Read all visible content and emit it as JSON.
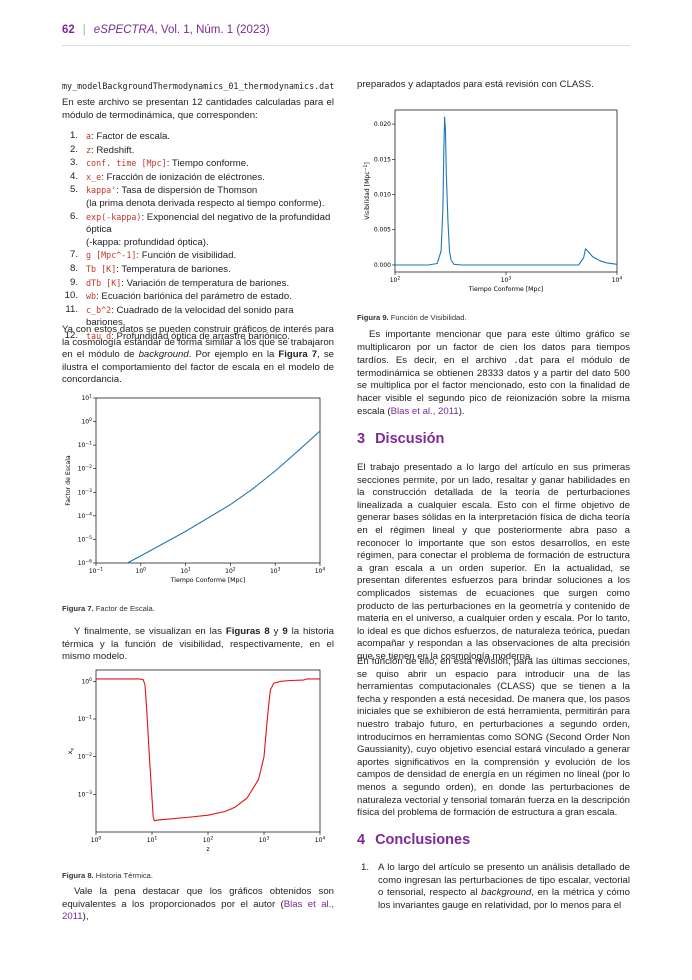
{
  "header": {
    "page": "62",
    "sep": "|",
    "journal": "eSPECTRA",
    "volume": ", Vol. 1, Núm. 1 (2023)"
  },
  "left": {
    "file": "my_modelBackgroundThermodynamics_01_thermodynamics.dat",
    "intro": "En este archivo se presentan 12 cantidades calculadas para el módulo de termodinámica, que corresponden:",
    "items": [
      {
        "n": "1.",
        "code": "a",
        "text": ": Factor de escala."
      },
      {
        "n": "2.",
        "code": "z",
        "text": ": Redshift."
      },
      {
        "n": "3.",
        "code": "conf. time [Mpc]",
        "text": ": Tiempo conforme."
      },
      {
        "n": "4.",
        "code": "x_e",
        "text": ": Fracción de ionización de eléctrones."
      },
      {
        "n": "5.",
        "code": "kappa'",
        "text": ": Tasa de dispersión de Thomson",
        "extra": "(la prima denota derivada respecto al tiempo conforme)."
      },
      {
        "n": "6.",
        "code": "exp(-kappa)",
        "text": ": Exponencial del negativo de la profundidad óptica",
        "extra": "(-kappa: profundidad óptica)."
      },
      {
        "n": "7.",
        "code": "g [Mpc^-1]",
        "text": ": Función de visibilidad."
      },
      {
        "n": "8.",
        "code": "Tb [K]",
        "text": ": Temperatura de bariones."
      },
      {
        "n": "9.",
        "code": "dTb [K]",
        "text": ": Variación de temperatura de bariones."
      },
      {
        "n": "10.",
        "code": "wb",
        "text": ": Ecuación bariónica del parámetro de estado."
      },
      {
        "n": "11.",
        "code": "c_b^2",
        "text": ": Cuadrado de la velocidad del sonido para bariones."
      },
      {
        "n": "12.",
        "code": "tau_d",
        "text": ": Profundidad óptica de arrastre bariónico."
      }
    ],
    "para1_a": "Ya con estos datos se pueden construir gráficos de interés para la cosmología estándar de forma similar a los que se trabajaron en el módulo de ",
    "para1_i": "background",
    "para1_b": ". Por ejemplo en la ",
    "para1_fig": "Figura 7",
    "para1_c": ", se ilustra el comportamiento del factor de escala en el modelo de concordancia.",
    "fig7_cap_b": "Figura 7.",
    "fig7_cap": " Factor de Escala.",
    "para2_a": "Y finalmente, se visualizan en las ",
    "para2_f8": "Figuras 8",
    "para2_y": " y ",
    "para2_f9": "9",
    "para2_b": " la historia térmica y la función de visibilidad, respectivamente, en el mismo modelo.",
    "fig8_cap_b": "Figura 8.",
    "fig8_cap": " Historia Térmica.",
    "para3_a": "Vale la pena destacar que los gráficos obtenidos son equivalentes a los proporcionados por el autor (",
    "para3_cite": "Blas et al., 2011",
    "para3_b": "),"
  },
  "right": {
    "top": "preparados y adaptados para está revisión con CLASS.",
    "fig9_cap_b": "Figura 9.",
    "fig9_cap": " Función de Visibilidad.",
    "para1_a": "Es importante mencionar que para este último gráfico se multiplicaron por un factor de cien los datos para tiempos tardíos. Es decir, en el archivo ",
    "para1_code": ".dat",
    "para1_b": " para el módulo de termodinámica se obtienen 28333 datos y a partir del dato 500 se multiplica por el factor mencionado, esto con la finalidad de hacer visible el segundo pico de reionización sobre la misma escala (",
    "para1_cite": "Blas et al., 2011",
    "para1_c": ").",
    "sec3_num": "3",
    "sec3_title": "Discusión",
    "disc1": "El trabajo presentado a lo largo del artículo en sus primeras secciones permite, por un lado, resaltar y ganar habilidades en la construcción detallada de la teoría de perturbaciones linealizada a cualquier escala. Esto con el firme objetivo de generar bases sólidas en la interpretación física de dicha teoría en el régimen lineal y que posteriormente abra paso a reconocer lo importante que son estos desarrollos, en este régimen, para conectar el problema de formación de estructura a gran escala a un orden superior. En la actualidad, se presentan diferentes esfuerzos para brindar soluciones a los complicados sistemas de ecuaciones que surgen como producto de las perturbaciones en la geometría y contenido de materia en el universo, a cualquier orden y escala. Por lo tanto, lo ideal es que dichos esfuerzos, de naturaleza teórica, puedan acompañar y respondan a las observaciones de alta precisión que se tienen en la cosmología moderna.",
    "disc2": "En función de ello, en está revisión, para las últimas secciones, se quiso abrir un espacio para introducir una de las herramientas computacionales (CLASS) que se tienen a la fecha y responden a está necesidad. De manera que, los pasos iniciales que se exhibieron de está herramienta, permitirán para nuestro trabajo futuro, en perturbaciones a segundo orden, introducirnos en herramientas como SONG (Second Order Non Gaussianity), cuyo objetivo esencial estará vinculado a generar aportes significativos en la comprensión y evolución de los campos de densidad de energía en un régimen no lineal (por lo menos a segundo orden), en donde las perturbaciones de naturaleza vectorial y tensorial tomarán fuerza en la descripción física del problema de formación de estructura a gran escala.",
    "sec4_num": "4",
    "sec4_title": "Conclusiones",
    "conc_n": "1.",
    "conc_a": "A lo largo del artículo se presento un análisis detallado de como ingresan las perturbaciones de tipo escalar, vectorial o tensorial, respecto al ",
    "conc_i": "background",
    "conc_b": ", en la métrica y cómo los invariantes gauge en relatividad, por lo menos para el"
  },
  "chart_data": [
    {
      "type": "line",
      "id": "fig7",
      "xlabel": "Tiempo Conforme [Mpc]",
      "ylabel": "Factor de Escala",
      "xscale": "log",
      "yscale": "log",
      "xlim": [
        0.1,
        10000
      ],
      "ylim": [
        1e-06,
        10
      ],
      "xticks": [
        "10^-1",
        "10^0",
        "10^1",
        "10^2",
        "10^3",
        "10^4"
      ],
      "yticks": [
        "10^-6",
        "10^-5",
        "10^-4",
        "10^-3",
        "10^-2",
        "10^-1",
        "10^0",
        "10^1"
      ],
      "series": [
        {
          "color": "#1f77b4",
          "x": [
            0.5,
            1,
            10,
            100,
            300,
            1000,
            3000,
            10000
          ],
          "y": [
            1e-06,
            2e-06,
            2.2e-05,
            0.0003,
            0.0013,
            0.008,
            0.05,
            0.4
          ]
        }
      ]
    },
    {
      "type": "line",
      "id": "fig8",
      "xlabel": "z",
      "ylabel": "x_e",
      "xscale": "log",
      "yscale": "log",
      "xlim": [
        1,
        10000
      ],
      "ylim": [
        0.0001,
        2
      ],
      "xticks": [
        "10^0",
        "10^1",
        "10^2",
        "10^3",
        "10^4"
      ],
      "yticks": [
        "10^-3",
        "10^-2",
        "10^-1",
        "10^0"
      ],
      "series": [
        {
          "color": "#e01515",
          "x": [
            1,
            2,
            4,
            6,
            7,
            7.5,
            8,
            9,
            10,
            10.5,
            11,
            13,
            20,
            50,
            100,
            200,
            300,
            500,
            800,
            1000,
            1100,
            1200,
            1300,
            1500,
            2000,
            3000,
            5000,
            6000,
            7000,
            10000
          ],
          "y": [
            1.16,
            1.16,
            1.16,
            1.16,
            1.1,
            0.8,
            0.2,
            0.01,
            0.0008,
            0.00025,
            0.0002,
            0.00021,
            0.00022,
            0.00025,
            0.00028,
            0.00035,
            0.00045,
            0.0008,
            0.0025,
            0.01,
            0.05,
            0.2,
            0.6,
            0.9,
            1.0,
            1.05,
            1.08,
            1.16,
            1.16,
            1.16
          ]
        }
      ]
    },
    {
      "type": "line",
      "id": "fig9",
      "xlabel": "Tiempo Conforme [Mpc]",
      "ylabel": "Visibilidad [Mpc^-1]",
      "xscale": "log",
      "yscale": "linear",
      "xlim": [
        100,
        10000
      ],
      "ylim": [
        -0.001,
        0.022
      ],
      "xticks": [
        "10^2",
        "10^3",
        "10^4"
      ],
      "yticks": [
        "0.000",
        "0.005",
        "0.010",
        "0.015",
        "0.020"
      ],
      "series": [
        {
          "color": "#1f77b4",
          "x": [
            100,
            200,
            240,
            260,
            270,
            275,
            280,
            285,
            290,
            300,
            310,
            320,
            340,
            400,
            500,
            1000,
            3000,
            4500,
            5000,
            5200,
            5500,
            6000,
            7000,
            8000,
            10000
          ],
          "y": [
            0,
            0,
            0.0002,
            0.002,
            0.008,
            0.016,
            0.021,
            0.019,
            0.013,
            0.006,
            0.002,
            0.0007,
            0.0001,
            0,
            0,
            0,
            0,
            0,
            0.001,
            0.0023,
            0.0019,
            0.0012,
            0.0006,
            0.0003,
            0.0001
          ]
        }
      ]
    }
  ]
}
